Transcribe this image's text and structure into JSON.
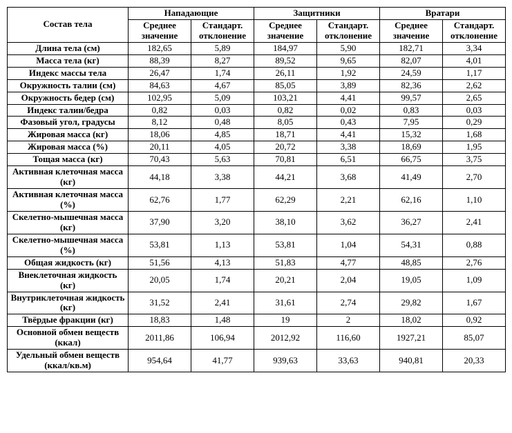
{
  "table": {
    "corner_header": "Состав тела",
    "groups": [
      "Нападающие",
      "Защитники",
      "Вратари"
    ],
    "subheaders": [
      "Среднее значение",
      "Стандарт. отклонение"
    ],
    "rows": [
      {
        "label": "Длина тела (см)",
        "v": [
          "182,65",
          "5,89",
          "184,97",
          "5,90",
          "182,71",
          "3,34"
        ]
      },
      {
        "label": "Масса тела (кг)",
        "v": [
          "88,39",
          "8,27",
          "89,52",
          "9,65",
          "82,07",
          "4,01"
        ]
      },
      {
        "label": "Индекс массы тела",
        "v": [
          "26,47",
          "1,74",
          "26,11",
          "1,92",
          "24,59",
          "1,17"
        ]
      },
      {
        "label": "Окружность талии (см)",
        "v": [
          "84,63",
          "4,67",
          "85,05",
          "3,89",
          "82,36",
          "2,62"
        ]
      },
      {
        "label": "Окружность бедер (см)",
        "v": [
          "102,95",
          "5,09",
          "103,21",
          "4,41",
          "99,57",
          "2,65"
        ]
      },
      {
        "label": "Индекс талии/бедра",
        "v": [
          "0,82",
          "0,03",
          "0,82",
          "0,02",
          "0,83",
          "0,03"
        ]
      },
      {
        "label": "Фазовый угол, градусы",
        "v": [
          "8,12",
          "0,48",
          "8,05",
          "0,43",
          "7,95",
          "0,29"
        ]
      },
      {
        "label": "Жировая масса (кг)",
        "v": [
          "18,06",
          "4,85",
          "18,71",
          "4,41",
          "15,32",
          "1,68"
        ]
      },
      {
        "label": "Жировая масса (%)",
        "v": [
          "20,11",
          "4,05",
          "20,72",
          "3,38",
          "18,69",
          "1,95"
        ]
      },
      {
        "label": "Тощая масса (кг)",
        "v": [
          "70,43",
          "5,63",
          "70,81",
          "6,51",
          "66,75",
          "3,75"
        ]
      },
      {
        "label": "Активная клеточная масса (кг)",
        "v": [
          "44,18",
          "3,38",
          "44,21",
          "3,68",
          "41,49",
          "2,70"
        ]
      },
      {
        "label": "Активная клеточная масса (%)",
        "v": [
          "62,76",
          "1,77",
          "62,29",
          "2,21",
          "62,16",
          "1,10"
        ]
      },
      {
        "label": "Скелетно-мышечная масса (кг)",
        "v": [
          "37,90",
          "3,20",
          "38,10",
          "3,62",
          "36,27",
          "2,41"
        ]
      },
      {
        "label": "Скелетно-мышечная масса (%)",
        "v": [
          "53,81",
          "1,13",
          "53,81",
          "1,04",
          "54,31",
          "0,88"
        ]
      },
      {
        "label": "Общая жидкость (кг)",
        "v": [
          "51,56",
          "4,13",
          "51,83",
          "4,77",
          "48,85",
          "2,76"
        ]
      },
      {
        "label": "Внеклеточная жидкость (кг)",
        "v": [
          "20,05",
          "1,74",
          "20,21",
          "2,04",
          "19,05",
          "1,09"
        ]
      },
      {
        "label": "Внутриклеточная жидкость (кг)",
        "v": [
          "31,52",
          "2,41",
          "31,61",
          "2,74",
          "29,82",
          "1,67"
        ]
      },
      {
        "label": "Твёрдые фракции (кг)",
        "v": [
          "18,83",
          "1,48",
          "19",
          "2",
          "18,02",
          "0,92"
        ]
      },
      {
        "label": "Основной обмен веществ (ккал)",
        "v": [
          "2011,86",
          "106,94",
          "2012,92",
          "116,60",
          "1927,21",
          "85,07"
        ]
      },
      {
        "label": "Удельный обмен веществ (ккал/кв.м)",
        "v": [
          "954,64",
          "41,77",
          "939,63",
          "33,63",
          "940,81",
          "20,33"
        ]
      }
    ]
  }
}
